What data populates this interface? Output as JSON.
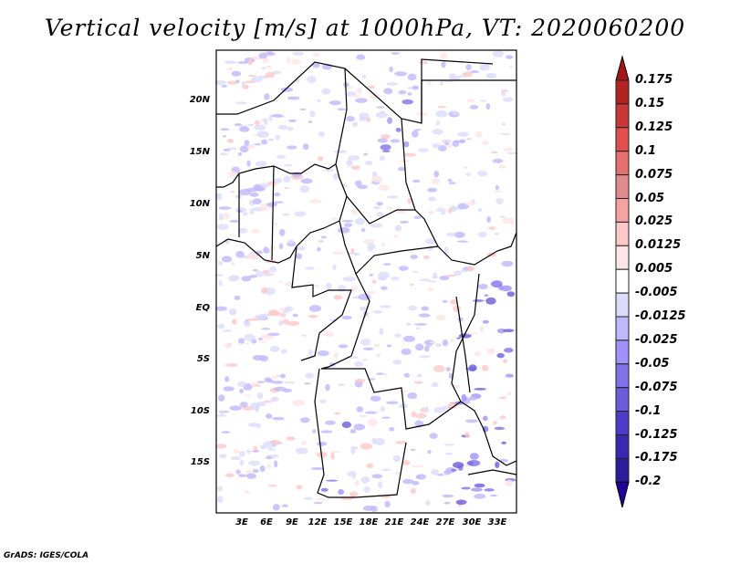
{
  "title": "Vertical velocity [m/s] at 1000hPa, VT: 2020060200",
  "lat_labels": [
    "20N",
    "15N",
    "10N",
    "5N",
    "EQ",
    "5S",
    "10S",
    "15S"
  ],
  "lon_labels": [
    "3E",
    "6E",
    "9E",
    "12E",
    "15E",
    "18E",
    "21E",
    "24E",
    "27E",
    "30E",
    "33E"
  ],
  "colorbar": {
    "labels": [
      "0.175",
      "0.15",
      "0.125",
      "0.1",
      "0.075",
      "0.05",
      "0.025",
      "0.0125",
      "0.005",
      "-0.005",
      "-0.0125",
      "-0.025",
      "-0.05",
      "-0.075",
      "-0.1",
      "-0.125",
      "-0.175",
      "-0.2"
    ],
    "top_triangle_color": "#a01818",
    "colors": [
      "#b22424",
      "#c83838",
      "#e05050",
      "#e47070",
      "#e08c8c",
      "#f5a2a2",
      "#fcc8c8",
      "#fde5e5",
      "#ffffff",
      "#dcdcfa",
      "#c0b8fc",
      "#a092f8",
      "#8272e8",
      "#6c5cd8",
      "#4c3cc8",
      "#3a28b4",
      "#2c1c9c"
    ],
    "bottom_triangle_color": "#22009a"
  },
  "credit": "GrADS: IGES/COLA"
}
